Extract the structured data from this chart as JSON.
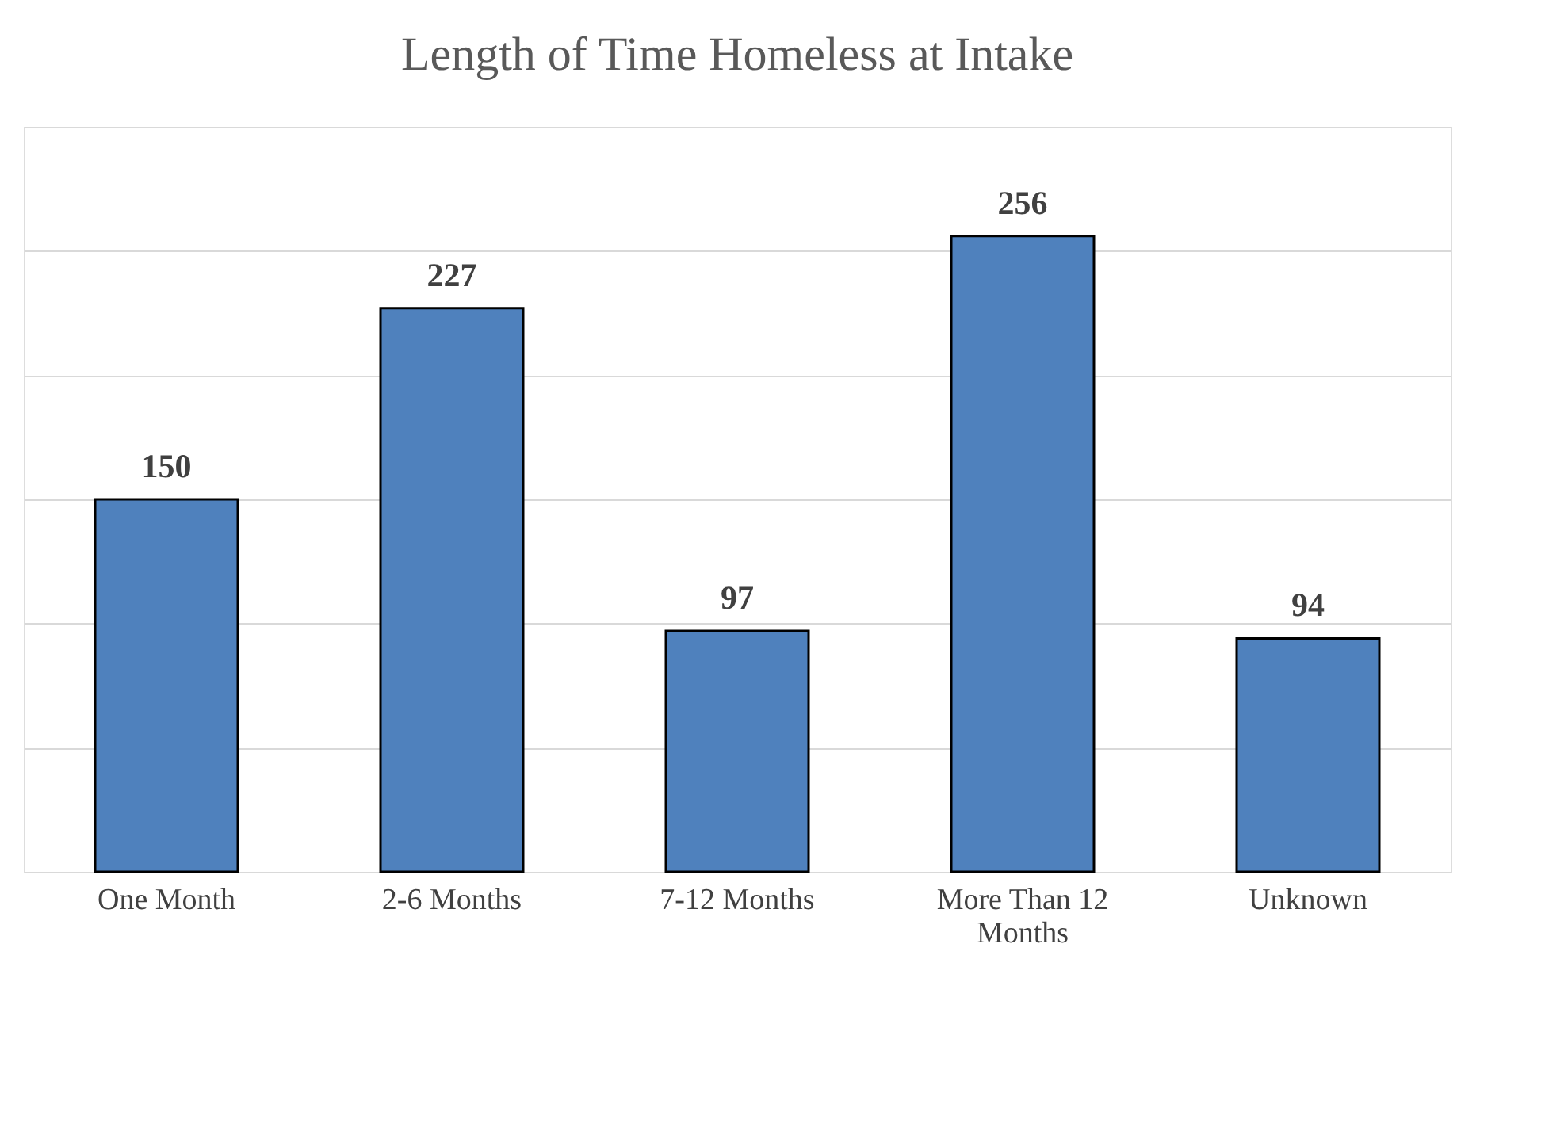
{
  "chart_data": {
    "type": "bar",
    "title": "Length of Time Homeless at Intake",
    "categories": [
      "One Month",
      "2-6 Months",
      "7-12 Months",
      "More Than 12 Months",
      "Unknown"
    ],
    "values": [
      150,
      227,
      97,
      256,
      94
    ],
    "color": "#4f81bd",
    "ylim": [
      0,
      300
    ],
    "yticks": [
      {
        "value": 0,
        "label": null
      },
      {
        "value": 50,
        "label": null
      },
      {
        "value": 100,
        "label": null
      },
      {
        "value": 150,
        "label": null
      },
      {
        "value": 200,
        "label": null
      },
      {
        "value": 250,
        "label": null
      },
      {
        "value": 300,
        "label": null
      }
    ],
    "grid": "y",
    "tick_labels": "x",
    "data_labels": true
  }
}
